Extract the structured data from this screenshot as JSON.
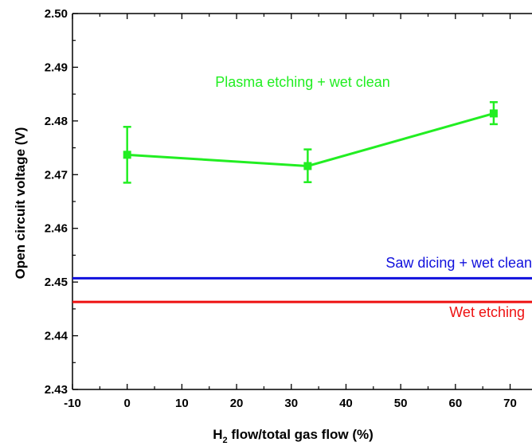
{
  "chart_data": {
    "type": "line",
    "xlabel": "H",
    "xlabel_sub": "2",
    "xlabel_rest": " flow/total gas flow (%)",
    "ylabel": "Open circuit voltage (V)",
    "xlim": [
      -10,
      74
    ],
    "ylim": [
      2.43,
      2.5
    ],
    "x_ticks": [
      -10,
      0,
      10,
      20,
      30,
      40,
      50,
      60,
      70
    ],
    "y_ticks": [
      2.43,
      2.44,
      2.45,
      2.46,
      2.47,
      2.48,
      2.49,
      2.5
    ],
    "x_tick_labels": [
      "-10",
      "0",
      "10",
      "20",
      "30",
      "40",
      "50",
      "60",
      "70"
    ],
    "y_tick_labels": [
      "2.43",
      "2.44",
      "2.45",
      "2.46",
      "2.47",
      "2.48",
      "2.49",
      "2.50"
    ],
    "grid": false,
    "series": [
      {
        "name": "Plasma etching + wet clean",
        "color": "#22ee22",
        "x": [
          0,
          33,
          67
        ],
        "y": [
          2.4737,
          2.4716,
          2.4814
        ],
        "y_err_low": [
          2.4685,
          2.4686,
          2.4794
        ],
        "y_err_high": [
          2.4789,
          2.4747,
          2.4835
        ]
      },
      {
        "name": "Saw dicing + wet clean",
        "color": "#1010dd",
        "hline": 2.4507
      },
      {
        "name": "Wet etching",
        "color": "#ee1111",
        "hline": 2.4463
      }
    ]
  }
}
